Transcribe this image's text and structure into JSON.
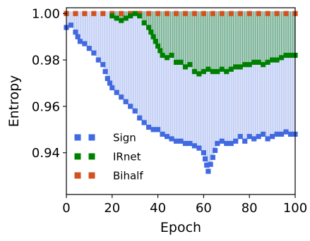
{
  "chart_data": {
    "type": "scatter",
    "title": "",
    "xlabel": "Epoch",
    "ylabel": "Entropy",
    "xlim": [
      0,
      100
    ],
    "ylim": [
      0.922,
      1.0025
    ],
    "xticks": [
      0,
      20,
      40,
      60,
      80,
      100
    ],
    "yticks": [
      0.94,
      0.96,
      0.98,
      1.0
    ],
    "ytick_labels": [
      "0.94",
      "0.96",
      "0.98",
      "1.00"
    ],
    "grid": false,
    "legend_position": "lower-left",
    "series": [
      {
        "name": "Sign",
        "color": "#4169e1",
        "marker": "square",
        "linestyle": "dotted",
        "band": "vertical-hatch",
        "x": [
          0,
          2,
          4,
          6,
          8,
          10,
          12,
          14,
          16,
          18,
          20,
          22,
          24,
          26,
          28,
          30,
          32,
          34,
          36,
          38,
          40,
          42,
          44,
          46,
          48,
          50,
          52,
          54,
          56,
          58,
          60,
          62,
          64,
          66,
          68,
          70,
          72,
          74,
          76,
          78,
          80,
          82,
          84,
          86,
          88,
          90,
          92,
          94,
          96,
          98,
          100
        ],
        "y": [
          0.994,
          0.995,
          0.992,
          0.988,
          0.987,
          0.985,
          0.983,
          0.98,
          0.978,
          0.972,
          0.968,
          0.966,
          0.964,
          0.962,
          0.96,
          0.958,
          0.955,
          0.953,
          0.951,
          0.95,
          0.95,
          0.948,
          0.947,
          0.946,
          0.945,
          0.945,
          0.944,
          0.944,
          0.943,
          0.942,
          0.94,
          0.932,
          0.938,
          0.944,
          0.945,
          0.944,
          0.944,
          0.945,
          0.947,
          0.945,
          0.947,
          0.946,
          0.947,
          0.948,
          0.946,
          0.947,
          0.948,
          0.948,
          0.949,
          0.948,
          0.948
        ]
      },
      {
        "name": "IRnet",
        "color": "#008000",
        "marker": "square",
        "linestyle": "dotted",
        "band": "vertical-hatch",
        "x": [
          20,
          22,
          24,
          26,
          28,
          30,
          32,
          34,
          36,
          38,
          40,
          42,
          44,
          46,
          48,
          50,
          52,
          54,
          56,
          58,
          60,
          62,
          64,
          66,
          68,
          70,
          72,
          74,
          76,
          78,
          80,
          82,
          84,
          86,
          88,
          90,
          92,
          94,
          96,
          98,
          100
        ],
        "y": [
          0.999,
          0.998,
          0.997,
          0.998,
          0.999,
          1.0,
          0.999,
          0.996,
          0.994,
          0.99,
          0.986,
          0.982,
          0.981,
          0.982,
          0.979,
          0.979,
          0.977,
          0.978,
          0.975,
          0.974,
          0.975,
          0.976,
          0.975,
          0.975,
          0.976,
          0.975,
          0.976,
          0.977,
          0.977,
          0.978,
          0.978,
          0.979,
          0.979,
          0.978,
          0.979,
          0.98,
          0.98,
          0.981,
          0.982,
          0.982,
          0.982
        ]
      },
      {
        "name": "Bihalf",
        "color": "#d2521f",
        "marker": "square",
        "linestyle": "dotted",
        "x": [
          0,
          4,
          8,
          12,
          16,
          20,
          24,
          28,
          32,
          36,
          40,
          44,
          48,
          52,
          56,
          60,
          64,
          68,
          72,
          76,
          80,
          84,
          88,
          92,
          96,
          100
        ],
        "y": [
          1.0,
          1.0,
          1.0,
          1.0,
          1.0,
          1.0,
          1.0,
          1.0,
          1.0,
          1.0,
          1.0,
          1.0,
          1.0,
          1.0,
          1.0,
          1.0,
          1.0,
          1.0,
          1.0,
          1.0,
          1.0,
          1.0,
          1.0,
          1.0,
          1.0,
          1.0
        ]
      }
    ]
  }
}
